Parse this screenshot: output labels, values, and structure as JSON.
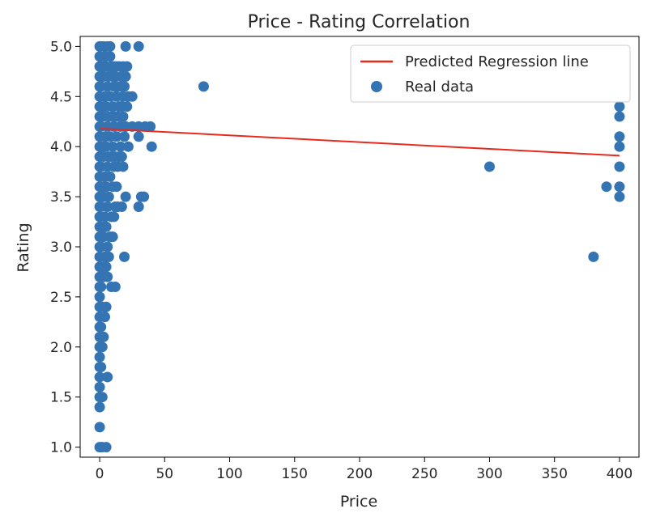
{
  "chart_data": {
    "type": "scatter",
    "title": "Price - Rating Correlation",
    "xlabel": "Price",
    "ylabel": "Rating",
    "xlim": [
      -15,
      415
    ],
    "ylim": [
      0.9,
      5.1
    ],
    "xticks": [
      0,
      50,
      100,
      150,
      200,
      250,
      300,
      350,
      400
    ],
    "yticks": [
      1.0,
      1.5,
      2.0,
      2.5,
      3.0,
      3.5,
      4.0,
      4.5,
      5.0
    ],
    "xtick_labels": [
      "0",
      "50",
      "100",
      "150",
      "200",
      "250",
      "300",
      "350",
      "400"
    ],
    "ytick_labels": [
      "1.0",
      "1.5",
      "2.0",
      "2.5",
      "3.0",
      "3.5",
      "4.0",
      "4.5",
      "5.0"
    ],
    "grid": false,
    "legend_position": "top-right",
    "regression_line": {
      "name": "Predicted Regression line",
      "color": "#e8291c",
      "points": [
        [
          0,
          4.18
        ],
        [
          400,
          3.91
        ]
      ]
    },
    "series": [
      {
        "name": "Real data",
        "color": "#3474b3",
        "points": [
          [
            0,
            1.0
          ],
          [
            0,
            1.2
          ],
          [
            0,
            1.4
          ],
          [
            0,
            1.5
          ],
          [
            0,
            1.6
          ],
          [
            0,
            1.7
          ],
          [
            0,
            1.8
          ],
          [
            0,
            1.9
          ],
          [
            0,
            2.0
          ],
          [
            0,
            2.1
          ],
          [
            0,
            2.2
          ],
          [
            0,
            2.3
          ],
          [
            0,
            2.4
          ],
          [
            0,
            2.5
          ],
          [
            0,
            2.6
          ],
          [
            0,
            2.7
          ],
          [
            0,
            2.8
          ],
          [
            0,
            2.9
          ],
          [
            0,
            3.0
          ],
          [
            0,
            3.1
          ],
          [
            0,
            3.2
          ],
          [
            0,
            3.3
          ],
          [
            0,
            3.4
          ],
          [
            0,
            3.5
          ],
          [
            0,
            3.6
          ],
          [
            0,
            3.7
          ],
          [
            0,
            3.8
          ],
          [
            0,
            3.9
          ],
          [
            0,
            4.0
          ],
          [
            0,
            4.1
          ],
          [
            0,
            4.2
          ],
          [
            0,
            4.3
          ],
          [
            0,
            4.4
          ],
          [
            0,
            4.5
          ],
          [
            0,
            4.6
          ],
          [
            0,
            4.7
          ],
          [
            0,
            4.8
          ],
          [
            0,
            4.9
          ],
          [
            0,
            5.0
          ],
          [
            1,
            1.8
          ],
          [
            1,
            2.2
          ],
          [
            1,
            2.6
          ],
          [
            1,
            3.0
          ],
          [
            1,
            3.4
          ],
          [
            1,
            3.8
          ],
          [
            1,
            4.2
          ],
          [
            1,
            4.6
          ],
          [
            1,
            5.0
          ],
          [
            2,
            1.0
          ],
          [
            2,
            1.5
          ],
          [
            2,
            2.0
          ],
          [
            2,
            2.4
          ],
          [
            2,
            2.8
          ],
          [
            2,
            3.2
          ],
          [
            2,
            3.6
          ],
          [
            2,
            4.0
          ],
          [
            2,
            4.4
          ],
          [
            2,
            4.8
          ],
          [
            3,
            2.1
          ],
          [
            3,
            2.7
          ],
          [
            3,
            3.1
          ],
          [
            3,
            3.5
          ],
          [
            3,
            3.9
          ],
          [
            3,
            4.3
          ],
          [
            3,
            4.7
          ],
          [
            3,
            5.0
          ],
          [
            4,
            2.3
          ],
          [
            4,
            2.9
          ],
          [
            4,
            3.3
          ],
          [
            4,
            3.7
          ],
          [
            4,
            4.1
          ],
          [
            4,
            4.5
          ],
          [
            4,
            4.9
          ],
          [
            5,
            1.0
          ],
          [
            5,
            2.4
          ],
          [
            5,
            2.8
          ],
          [
            5,
            3.2
          ],
          [
            5,
            3.6
          ],
          [
            5,
            4.0
          ],
          [
            5,
            4.4
          ],
          [
            5,
            4.8
          ],
          [
            6,
            1.7
          ],
          [
            6,
            2.7
          ],
          [
            6,
            3.0
          ],
          [
            6,
            3.4
          ],
          [
            6,
            3.8
          ],
          [
            6,
            4.2
          ],
          [
            6,
            4.6
          ],
          [
            6,
            5.0
          ],
          [
            7,
            2.9
          ],
          [
            7,
            3.5
          ],
          [
            7,
            3.9
          ],
          [
            7,
            4.3
          ],
          [
            7,
            4.7
          ],
          [
            8,
            3.1
          ],
          [
            8,
            3.7
          ],
          [
            8,
            4.1
          ],
          [
            8,
            4.5
          ],
          [
            8,
            4.9
          ],
          [
            8,
            5.0
          ],
          [
            9,
            2.6
          ],
          [
            9,
            3.3
          ],
          [
            9,
            3.9
          ],
          [
            9,
            4.3
          ],
          [
            9,
            4.8
          ],
          [
            10,
            3.1
          ],
          [
            10,
            3.6
          ],
          [
            10,
            4.0
          ],
          [
            10,
            4.4
          ],
          [
            10,
            4.7
          ],
          [
            11,
            3.3
          ],
          [
            11,
            3.8
          ],
          [
            11,
            4.2
          ],
          [
            11,
            4.6
          ],
          [
            11,
            4.8
          ],
          [
            12,
            2.6
          ],
          [
            12,
            3.4
          ],
          [
            12,
            3.9
          ],
          [
            12,
            4.3
          ],
          [
            12,
            4.7
          ],
          [
            13,
            3.6
          ],
          [
            13,
            4.1
          ],
          [
            13,
            4.5
          ],
          [
            13,
            4.8
          ],
          [
            14,
            3.4
          ],
          [
            14,
            3.8
          ],
          [
            14,
            4.3
          ],
          [
            14,
            4.6
          ],
          [
            15,
            3.9
          ],
          [
            15,
            4.4
          ],
          [
            15,
            4.8
          ],
          [
            16,
            4.0
          ],
          [
            16,
            4.2
          ],
          [
            16,
            4.6
          ],
          [
            17,
            3.4
          ],
          [
            17,
            3.9
          ],
          [
            17,
            4.4
          ],
          [
            17,
            4.7
          ],
          [
            18,
            3.8
          ],
          [
            18,
            4.3
          ],
          [
            18,
            4.5
          ],
          [
            18,
            4.8
          ],
          [
            19,
            2.9
          ],
          [
            19,
            4.1
          ],
          [
            19,
            4.6
          ],
          [
            20,
            3.5
          ],
          [
            20,
            4.2
          ],
          [
            20,
            4.7
          ],
          [
            20,
            5.0
          ],
          [
            21,
            4.4
          ],
          [
            21,
            4.8
          ],
          [
            22,
            4.0
          ],
          [
            22,
            4.5
          ],
          [
            25,
            4.5
          ],
          [
            25,
            4.2
          ],
          [
            30,
            5.0
          ],
          [
            30,
            4.1
          ],
          [
            30,
            3.4
          ],
          [
            30,
            4.2
          ],
          [
            32,
            3.5
          ],
          [
            34,
            3.5
          ],
          [
            35,
            4.2
          ],
          [
            39,
            4.2
          ],
          [
            40,
            4.0
          ],
          [
            80,
            4.6
          ],
          [
            300,
            3.8
          ],
          [
            380,
            2.9
          ],
          [
            390,
            3.6
          ],
          [
            400,
            4.4
          ],
          [
            400,
            4.3
          ],
          [
            400,
            4.1
          ],
          [
            400,
            4.0
          ],
          [
            400,
            3.8
          ],
          [
            400,
            3.6
          ],
          [
            400,
            3.5
          ]
        ]
      }
    ]
  }
}
